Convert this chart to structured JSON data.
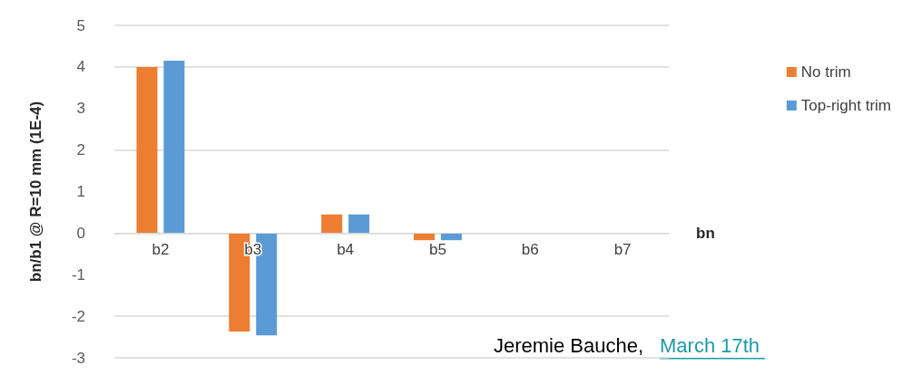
{
  "chart_data": {
    "type": "bar",
    "xlabel": "bn",
    "ylabel": "bn/b1 @ R=10 mm (1E-4)",
    "categories": [
      "b2",
      "b3",
      "b4",
      "b5",
      "b6",
      "b7"
    ],
    "series": [
      {
        "name": "No trim",
        "color": "#ed7d31",
        "values": [
          4.0,
          -2.37,
          0.45,
          -0.17,
          0,
          0
        ]
      },
      {
        "name": "Top-right trim",
        "color": "#5b9bd5",
        "values": [
          4.15,
          -2.46,
          0.45,
          -0.17,
          0,
          0
        ]
      }
    ],
    "ylim": [
      -3,
      5
    ],
    "yticks": [
      -3,
      -2,
      -1,
      0,
      1,
      2,
      3,
      4,
      5
    ],
    "grid": "y",
    "legend": "right",
    "annotations": [
      "Jeremie Bauche,",
      "March 17th"
    ]
  }
}
